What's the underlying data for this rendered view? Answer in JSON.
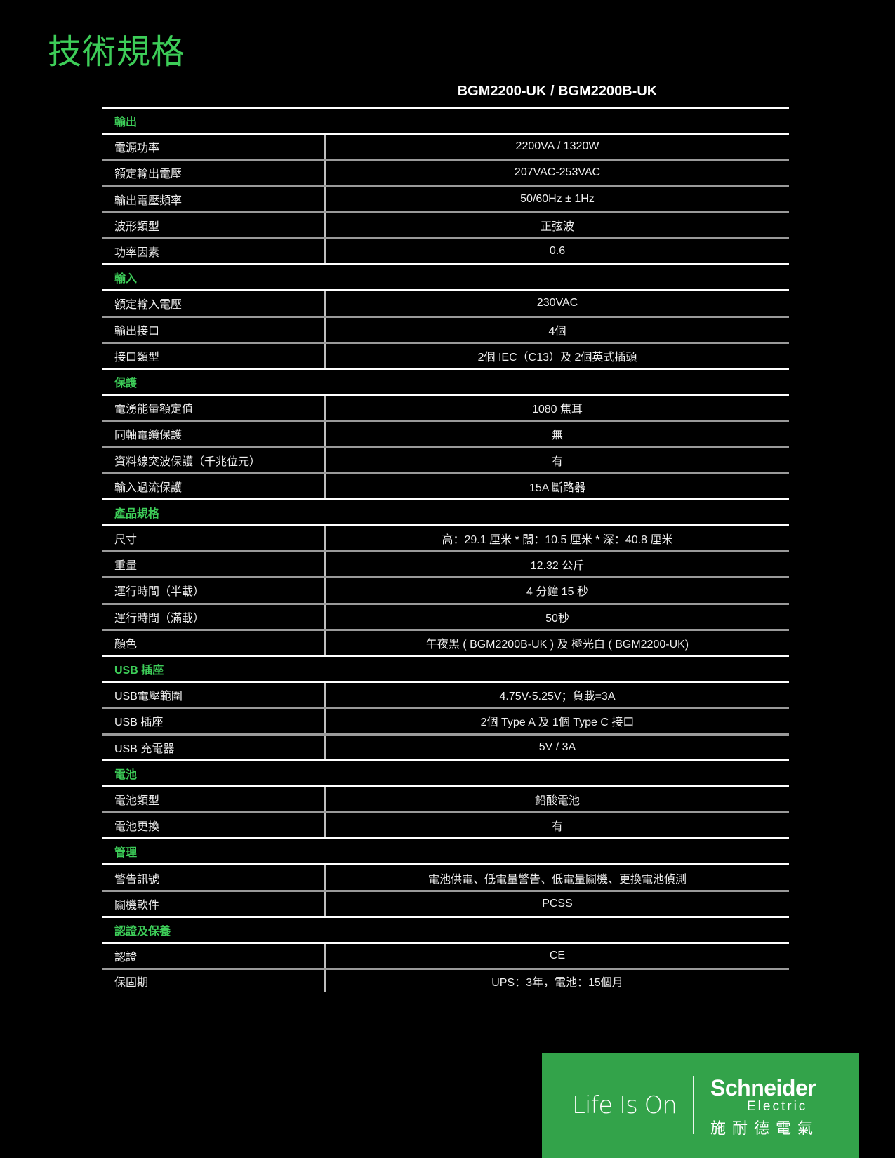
{
  "title": "技術規格",
  "model": "BGM2200-UK / BGM2200B-UK",
  "sections": [
    {
      "name": "輸出",
      "rows": [
        {
          "label": "電源功率",
          "value": "2200VA / 1320W"
        },
        {
          "label": "額定輸出電壓",
          "value": "207VAC-253VAC"
        },
        {
          "label": "輸出電壓頻率",
          "value": "50/60Hz ± 1Hz"
        },
        {
          "label": "波形類型",
          "value": "正弦波"
        },
        {
          "label": "功率因素",
          "value": "0.6"
        }
      ]
    },
    {
      "name": "輸入",
      "rows": [
        {
          "label": "額定輸入電壓",
          "value": "230VAC"
        },
        {
          "label": "輸出接口",
          "value": "4個"
        },
        {
          "label": "接口類型",
          "value": "2個 IEC（C13）及 2個英式插頭"
        }
      ]
    },
    {
      "name": "保護",
      "rows": [
        {
          "label": "電湧能量額定值",
          "value": "1080 焦耳"
        },
        {
          "label": "同軸電纜保護",
          "value": "無"
        },
        {
          "label": "資料線突波保護（千兆位元）",
          "value": "有"
        },
        {
          "label": "輸入過流保護",
          "value": "15A 斷路器"
        }
      ]
    },
    {
      "name": "產品規格",
      "rows": [
        {
          "label": "尺寸",
          "value": "高：29.1 厘米 * 闊：10.5 厘米 * 深：40.8 厘米"
        },
        {
          "label": "重量",
          "value": "12.32 公斤"
        },
        {
          "label": "運行時間（半載）",
          "value": "4 分鐘 15 秒"
        },
        {
          "label": "運行時間（滿載）",
          "value": "50秒"
        },
        {
          "label": "顏色",
          "value": "午夜黑 ( BGM2200B-UK ) 及 極光白 ( BGM2200-UK)"
        }
      ]
    },
    {
      "name": "USB 插座",
      "rows": [
        {
          "label": "USB電壓範圍",
          "value": "4.75V-5.25V；負載=3A"
        },
        {
          "label": "USB 插座",
          "value": "2個 Type A 及 1個 Type C 接口"
        },
        {
          "label": "USB 充電器",
          "value": "5V / 3A"
        }
      ]
    },
    {
      "name": "電池",
      "rows": [
        {
          "label": "電池類型",
          "value": "鉛酸電池"
        },
        {
          "label": "電池更換",
          "value": "有"
        }
      ]
    },
    {
      "name": "管理",
      "rows": [
        {
          "label": "警告訊號",
          "value": "電池供電、低電量警告、低電量關機、更換電池偵測"
        },
        {
          "label": "關機軟件",
          "value": "PCSS"
        }
      ]
    },
    {
      "name": "認證及保養",
      "rows": [
        {
          "label": "認證",
          "value": "CE"
        },
        {
          "label": "保固期",
          "value": "UPS：3年，電池：15個月"
        }
      ]
    }
  ],
  "logo": {
    "tagline": "Life Is On",
    "brand": "Schneider",
    "brand_sub": "Electric",
    "brand_cn": "施耐德電氣",
    "background": "#33a34a"
  },
  "colors": {
    "accent": "#3dcd58",
    "background": "#000000"
  }
}
